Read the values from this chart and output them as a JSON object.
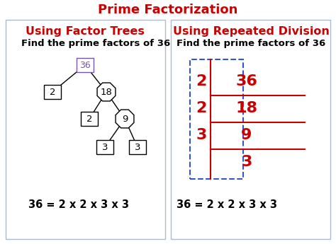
{
  "title": "Prime Factorization",
  "title_color": "#cc0000",
  "title_fontsize": 13,
  "left_header": "Using Factor Trees",
  "right_header": "Using Repeated Division",
  "header_color": "#cc0000",
  "header_fontsize": 11.5,
  "subheader": "Find the prime factors of 36",
  "subheader_fontsize": 9.5,
  "equation": "36 = 2 x 2 x 3 x 3",
  "equation_fontsize": 10.5,
  "tree_color_36": "#7755aa",
  "div_number_color": "#cc0000",
  "panel_edge_color": "#aabbcc",
  "dashed_box_color": "#3355cc",
  "line_color": "#cc0000",
  "bg_color": "#ffffff",
  "fig_w": 4.74,
  "fig_h": 3.45,
  "dpi": 100
}
